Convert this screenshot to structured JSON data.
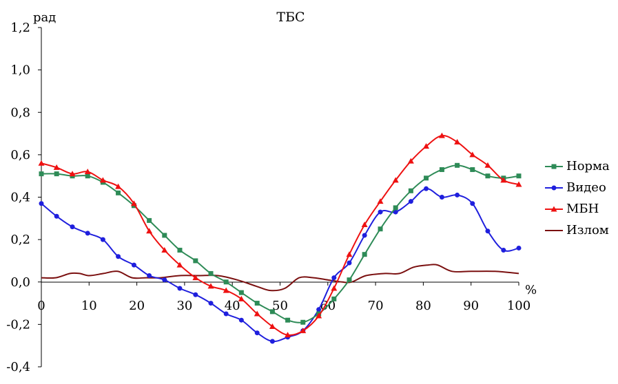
{
  "chart_data": {
    "type": "line",
    "title": "ТБС",
    "ylabel": "рад",
    "xlabel": "%",
    "xlim": [
      0,
      100
    ],
    "ylim": [
      -0.4,
      1.2
    ],
    "x_ticks": [
      0,
      10,
      20,
      30,
      40,
      50,
      60,
      70,
      80,
      90,
      100
    ],
    "x_tick_labels": [
      "0",
      "10",
      "20",
      "30",
      "40",
      "50",
      "60",
      "70",
      "80",
      "90",
      "100"
    ],
    "y_ticks": [
      1.2,
      1.0,
      0.8,
      0.6,
      0.4,
      0.2,
      0.0,
      -0.2,
      -0.4
    ],
    "y_tick_labels": [
      "1,2",
      "1,0",
      "0,8",
      "0,6",
      "0,4",
      "0,2",
      "0,0",
      "-0,2",
      "-0,4"
    ],
    "grid": false,
    "legend_position": "right",
    "series": [
      {
        "name": "Норма",
        "color": "#2e8b57",
        "marker": "square",
        "x": [
          0,
          3.2,
          6.5,
          9.7,
          12.9,
          16.1,
          19.4,
          22.6,
          25.8,
          29.0,
          32.3,
          35.5,
          38.7,
          41.9,
          45.2,
          48.4,
          51.6,
          54.8,
          58.1,
          61.3,
          64.5,
          67.7,
          71.0,
          74.2,
          77.4,
          80.6,
          83.9,
          87.1,
          90.3,
          93.5,
          96.8,
          100
        ],
        "y": [
          0.51,
          0.51,
          0.5,
          0.5,
          0.47,
          0.42,
          0.36,
          0.29,
          0.22,
          0.15,
          0.1,
          0.04,
          0.0,
          -0.05,
          -0.1,
          -0.14,
          -0.18,
          -0.19,
          -0.15,
          -0.08,
          0.01,
          0.13,
          0.25,
          0.35,
          0.43,
          0.49,
          0.53,
          0.55,
          0.53,
          0.5,
          0.49,
          0.5
        ]
      },
      {
        "name": "Видео",
        "color": "#1f1fdd",
        "marker": "circle",
        "x": [
          0,
          3.2,
          6.5,
          9.7,
          12.9,
          16.1,
          19.4,
          22.6,
          25.8,
          29.0,
          32.3,
          35.5,
          38.7,
          41.9,
          45.2,
          48.4,
          51.6,
          54.8,
          58.1,
          61.3,
          64.5,
          67.7,
          71.0,
          74.2,
          77.4,
          80.6,
          83.9,
          87.1,
          90.3,
          93.5,
          96.8,
          100
        ],
        "y": [
          0.37,
          0.31,
          0.26,
          0.23,
          0.2,
          0.12,
          0.08,
          0.03,
          0.01,
          -0.03,
          -0.06,
          -0.1,
          -0.15,
          -0.18,
          -0.24,
          -0.28,
          -0.26,
          -0.23,
          -0.13,
          0.02,
          0.09,
          0.22,
          0.33,
          0.33,
          0.38,
          0.44,
          0.4,
          0.41,
          0.37,
          0.24,
          0.15,
          0.16
        ]
      },
      {
        "name": "МБН",
        "color": "#ee1111",
        "marker": "triangle",
        "x": [
          0,
          3.2,
          6.5,
          9.7,
          12.9,
          16.1,
          19.4,
          22.6,
          25.8,
          29.0,
          32.3,
          35.5,
          38.7,
          41.9,
          45.2,
          48.4,
          51.6,
          54.8,
          58.1,
          61.3,
          64.5,
          67.7,
          71.0,
          74.2,
          77.4,
          80.6,
          83.9,
          87.1,
          90.3,
          93.5,
          96.8,
          100
        ],
        "y": [
          0.56,
          0.54,
          0.51,
          0.52,
          0.48,
          0.45,
          0.37,
          0.24,
          0.15,
          0.08,
          0.02,
          -0.02,
          -0.04,
          -0.08,
          -0.15,
          -0.21,
          -0.25,
          -0.23,
          -0.16,
          -0.03,
          0.13,
          0.27,
          0.38,
          0.48,
          0.57,
          0.64,
          0.69,
          0.66,
          0.6,
          0.55,
          0.48,
          0.46
        ]
      },
      {
        "name": "Излом",
        "color": "#7a0f0f",
        "marker": "none",
        "x": [
          0,
          3,
          6,
          8,
          10,
          13,
          16,
          19,
          22,
          25,
          29,
          33,
          37,
          41,
          45,
          48,
          51,
          54,
          57,
          60,
          63,
          65,
          68,
          72,
          75,
          78,
          81,
          83,
          86,
          90,
          95,
          100
        ],
        "y": [
          0.02,
          0.02,
          0.04,
          0.04,
          0.03,
          0.04,
          0.05,
          0.02,
          0.02,
          0.02,
          0.03,
          0.03,
          0.03,
          0.01,
          -0.02,
          -0.04,
          -0.03,
          0.02,
          0.02,
          0.01,
          0.0,
          0.0,
          0.03,
          0.04,
          0.04,
          0.07,
          0.08,
          0.08,
          0.05,
          0.05,
          0.05,
          0.04
        ]
      }
    ]
  }
}
